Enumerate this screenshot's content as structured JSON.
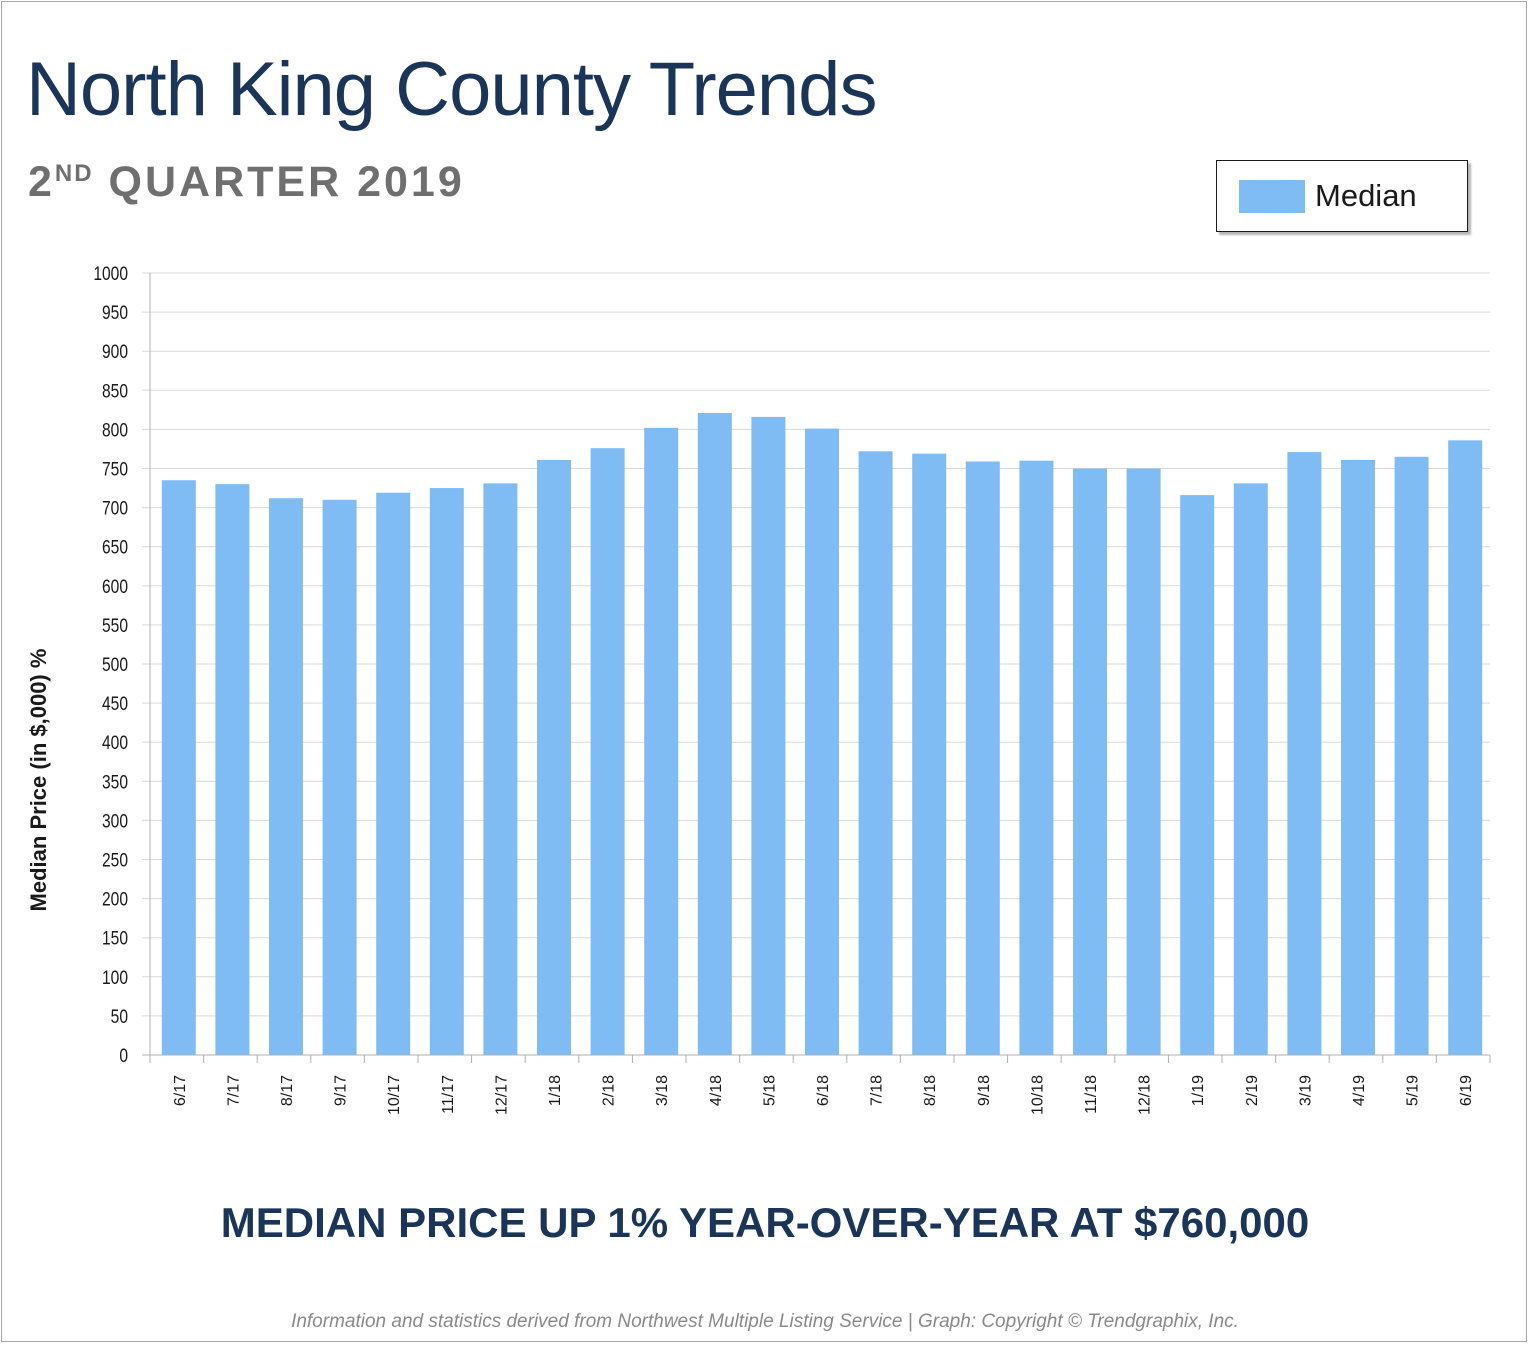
{
  "header": {
    "title": "North King County Trends",
    "subtitle_ordinal": "2",
    "subtitle_suffix": "ND",
    "subtitle_rest": "QUARTER 2019"
  },
  "legend": {
    "label": "Median",
    "color": "#7ebcf3"
  },
  "headline": "MEDIAN PRICE UP 1% YEAR-OVER-YEAR AT $760,000",
  "footer": "Information and statistics derived from Northwest Multiple Listing Service  |  Graph: Copyright © Trendgraphix, Inc.",
  "colors": {
    "bar": "#7ebcf3",
    "title": "#1a3557",
    "subtitle": "#6f6f6f",
    "gridline": "#d9d9d9"
  },
  "chart_data": {
    "type": "bar",
    "ylabel": "Median Price (in $,000) %",
    "xlabel": "",
    "ylim": [
      0,
      1000
    ],
    "yticks": [
      0,
      50,
      100,
      150,
      200,
      250,
      300,
      350,
      400,
      450,
      500,
      550,
      600,
      650,
      700,
      750,
      800,
      850,
      900,
      950,
      1000
    ],
    "grid": true,
    "legend_position": "top-right",
    "categories": [
      "6/17",
      "7/17",
      "8/17",
      "9/17",
      "10/17",
      "11/17",
      "12/17",
      "1/18",
      "2/18",
      "3/18",
      "4/18",
      "5/18",
      "6/18",
      "7/18",
      "8/18",
      "9/18",
      "10/18",
      "11/18",
      "12/18",
      "1/19",
      "2/19",
      "3/19",
      "4/19",
      "5/19",
      "6/19"
    ],
    "series": [
      {
        "name": "Median",
        "values": [
          735,
          730,
          712,
          710,
          719,
          725,
          731,
          761,
          776,
          802,
          821,
          816,
          801,
          772,
          769,
          759,
          760,
          750,
          750,
          716,
          731,
          771,
          761,
          765,
          786
        ]
      }
    ]
  }
}
